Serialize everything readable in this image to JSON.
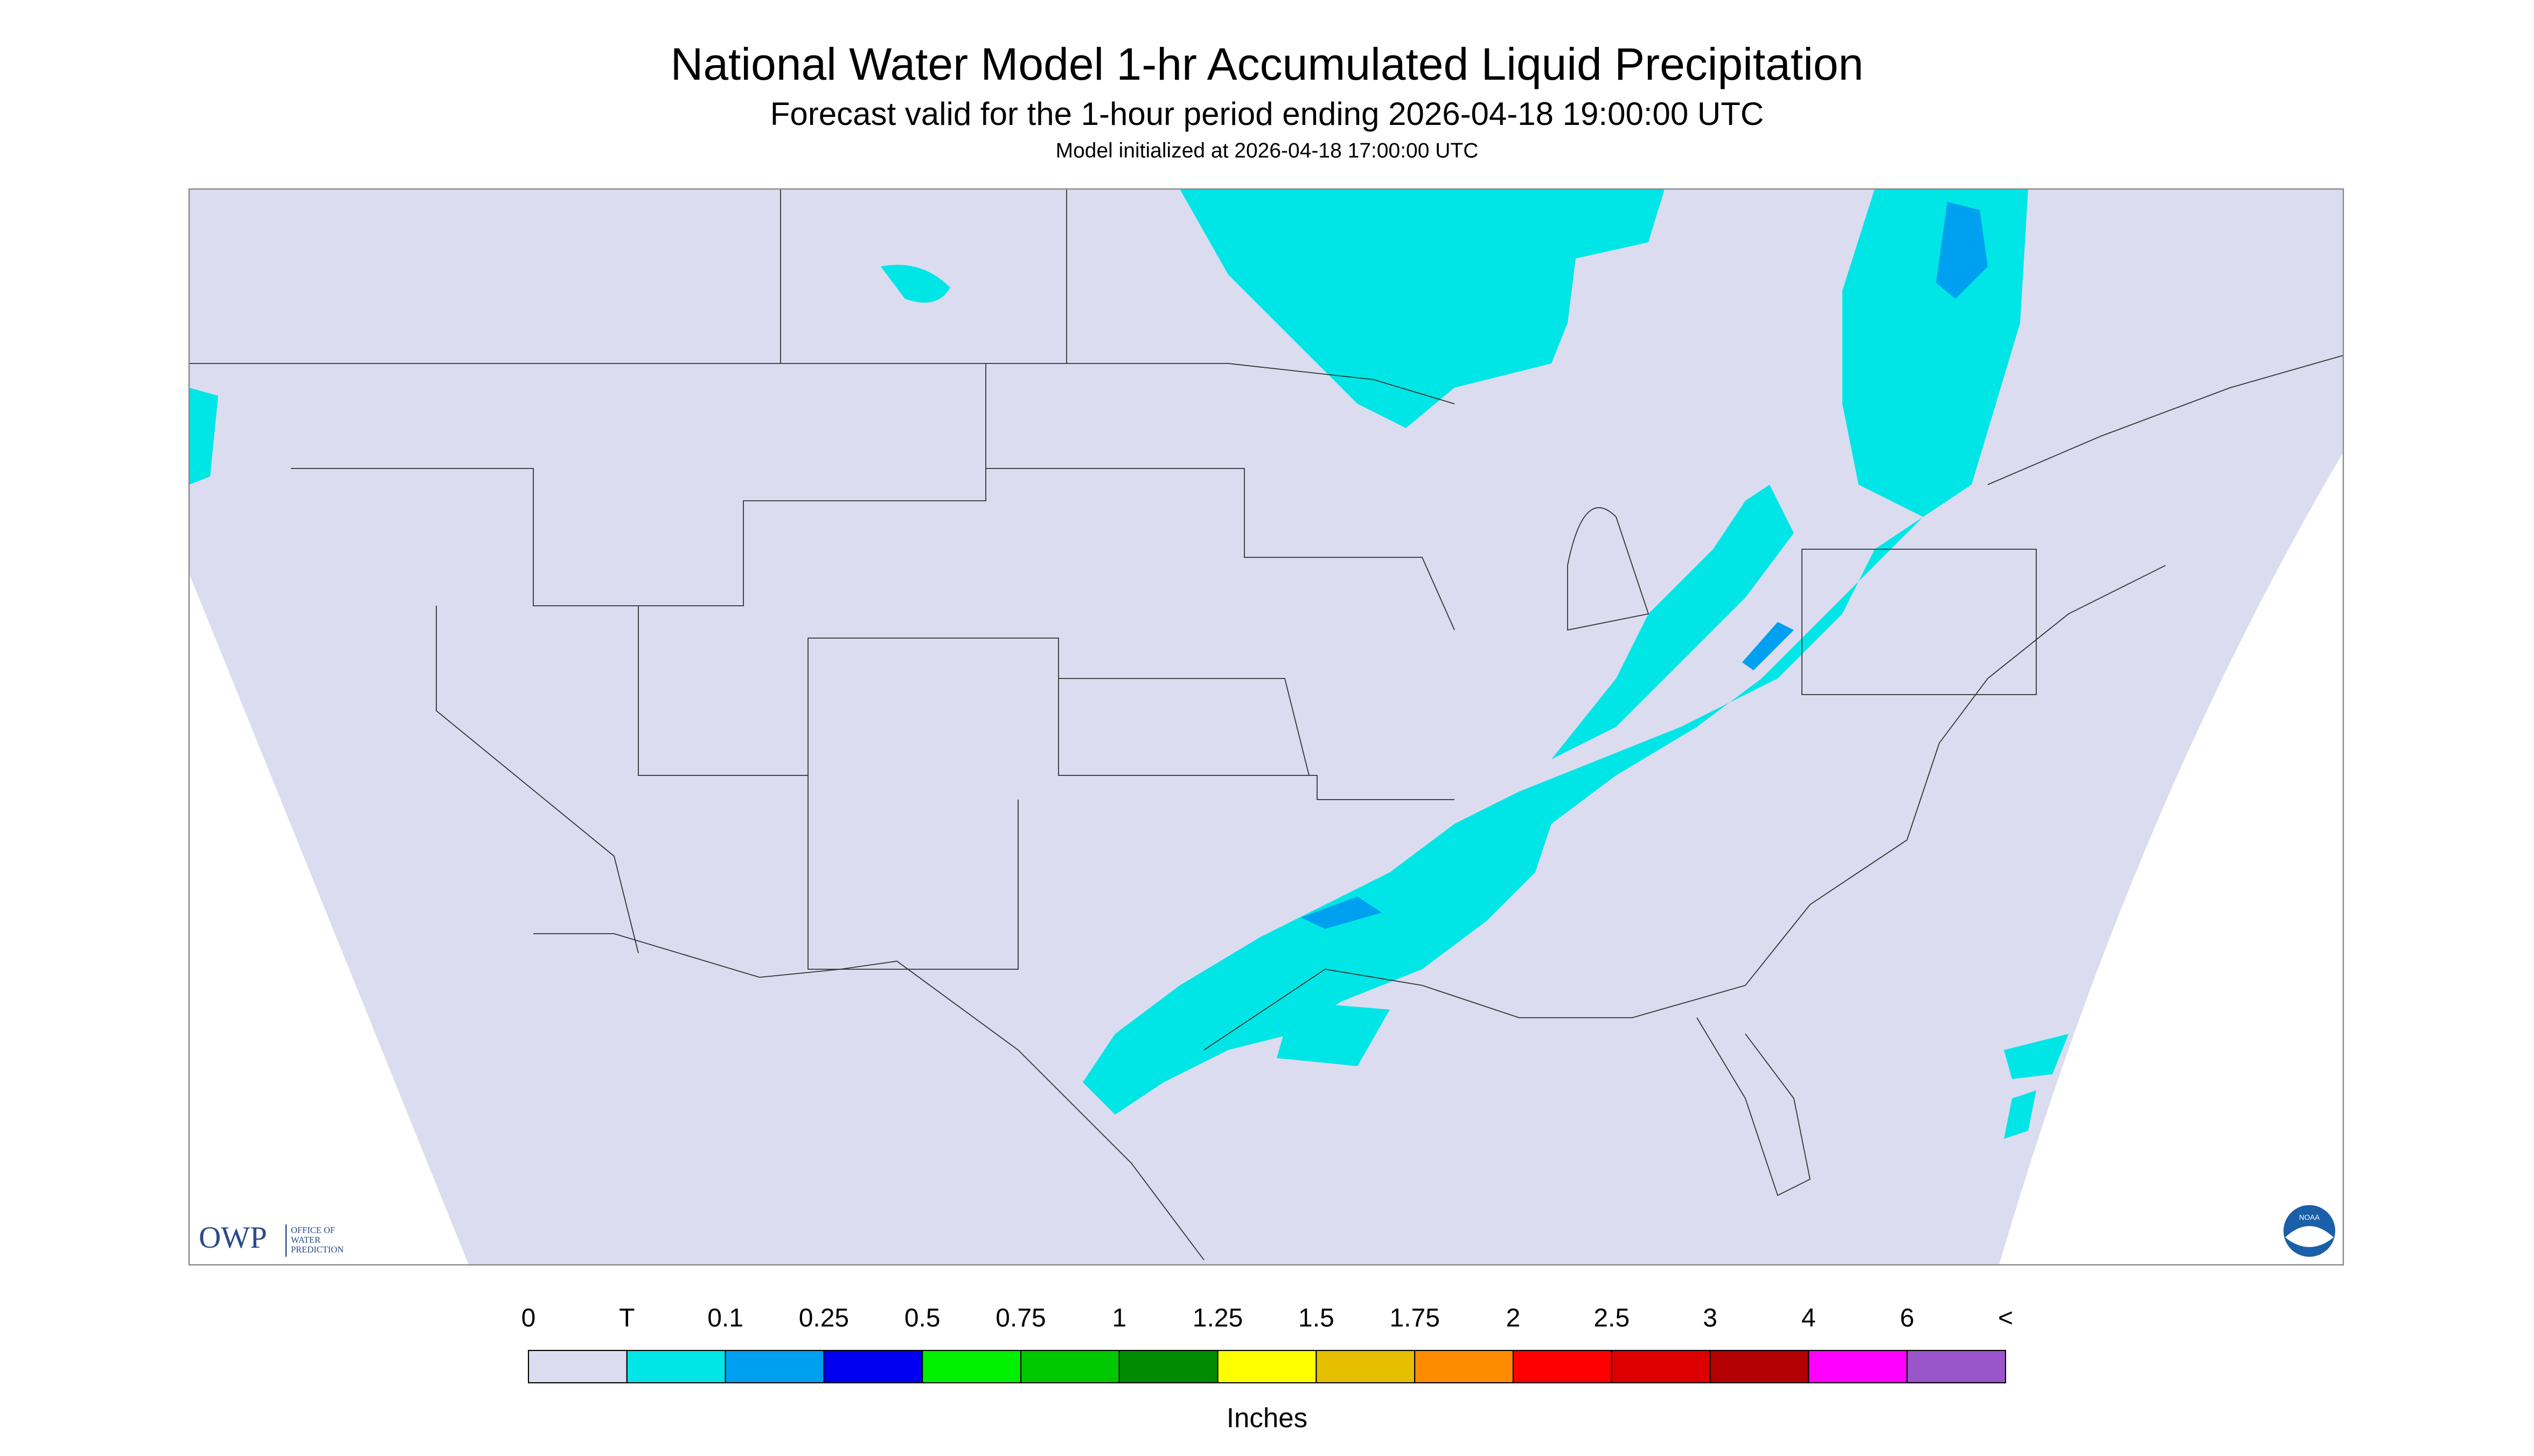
{
  "header": {
    "title": "National Water Model 1-hr Accumulated Liquid Precipitation",
    "subtitle": "Forecast valid for the 1-hour period ending 2026-04-18 19:00:00 UTC",
    "initialized": "Model initialized at 2026-04-18 17:00:00 UTC"
  },
  "logo": {
    "owp": "OWP",
    "lines": [
      "OFFICE OF",
      "WATER",
      "PREDICTION"
    ],
    "noaa": "NOAA"
  },
  "legend": {
    "labels": [
      "0",
      "T",
      "0.1",
      "0.25",
      "0.5",
      "0.75",
      "1",
      "1.25",
      "1.5",
      "1.75",
      "2",
      "2.5",
      "3",
      "4",
      "6",
      "<"
    ],
    "colors": [
      "#dcdcf0",
      "#00e6e6",
      "#00a0f0",
      "#0000f0",
      "#00f000",
      "#00c800",
      "#008c00",
      "#ffff00",
      "#e6be00",
      "#ff8c00",
      "#ff0000",
      "#dc0000",
      "#b40000",
      "#ff00ff",
      "#9955c9"
    ],
    "unit": "Inches"
  }
}
